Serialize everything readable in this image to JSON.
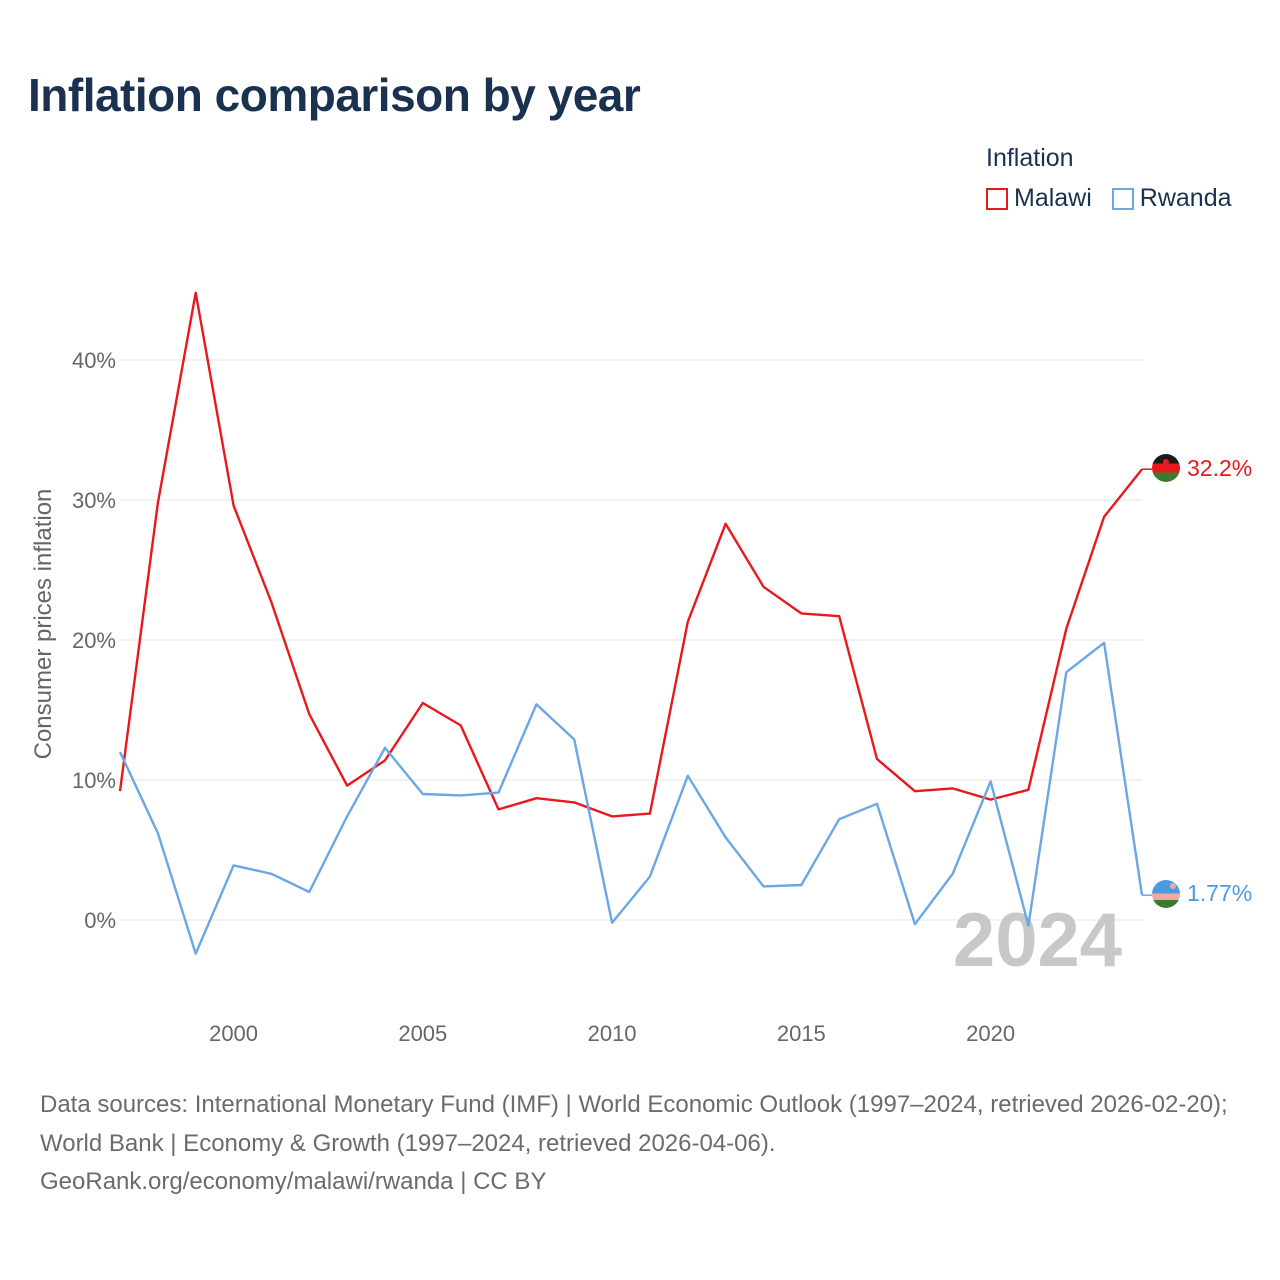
{
  "chart_data": {
    "type": "line",
    "title": "Inflation comparison by year",
    "ylabel": "Consumer prices inflation",
    "xlabel": "",
    "legend_title": "Inflation",
    "x": [
      1997,
      1998,
      1999,
      2000,
      2001,
      2002,
      2003,
      2004,
      2005,
      2006,
      2007,
      2008,
      2009,
      2010,
      2011,
      2012,
      2013,
      2014,
      2015,
      2016,
      2017,
      2018,
      2019,
      2020,
      2021,
      2022,
      2023,
      2024
    ],
    "series": [
      {
        "name": "Malawi",
        "color": "#e8191c",
        "values": [
          9.2,
          29.8,
          44.8,
          29.6,
          22.7,
          14.7,
          9.6,
          11.4,
          15.5,
          13.9,
          7.9,
          8.7,
          8.4,
          7.4,
          7.6,
          21.3,
          28.3,
          23.8,
          21.9,
          21.7,
          11.5,
          9.2,
          9.4,
          8.6,
          9.3,
          20.8,
          28.8,
          32.2
        ],
        "end_label": "32.2%"
      },
      {
        "name": "Rwanda",
        "color": "#6aa7e4",
        "values": [
          12.0,
          6.2,
          -2.4,
          3.9,
          3.3,
          2.0,
          7.4,
          12.3,
          9.0,
          8.9,
          9.1,
          15.4,
          12.9,
          -0.2,
          3.1,
          10.3,
          5.9,
          2.4,
          2.5,
          7.2,
          8.3,
          -0.3,
          3.3,
          9.9,
          -0.4,
          17.7,
          19.8,
          1.77
        ],
        "end_label": "1.77%"
      }
    ],
    "yticks": [
      0,
      10,
      20,
      30,
      40
    ],
    "ytick_labels": [
      "0%",
      "10%",
      "20%",
      "30%",
      "40%"
    ],
    "xticks": [
      2000,
      2005,
      2010,
      2015,
      2020
    ],
    "xtick_labels": [
      "2000",
      "2005",
      "2010",
      "2015",
      "2020"
    ],
    "ylim": [
      -6.3,
      47.8
    ],
    "xlim": [
      1997,
      2024
    ],
    "year_watermark": "2024",
    "grid": true
  },
  "source": {
    "line1": "Data sources: International Monetary Fund (IMF) | World Economic Outlook (1997–2024, retrieved 2026-02-20); World Bank | Economy & Growth (1997–2024, retrieved 2026-04-06).",
    "line2": "GeoRank.org/economy/malawi/rwanda | CC BY"
  },
  "colors": {
    "title": "#1a3150",
    "grid": "#e6e6e6",
    "axis_text": "#666666",
    "watermark": "#c8c8c8"
  }
}
